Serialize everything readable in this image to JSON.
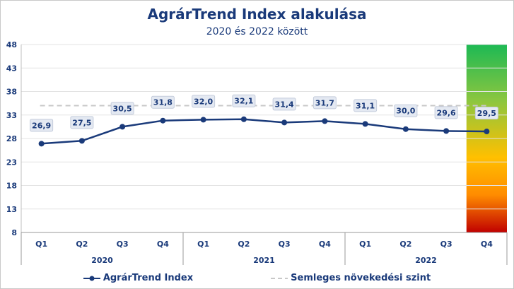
{
  "chart_data": {
    "type": "line",
    "title": "AgrárTrend Index alakulása",
    "subtitle": "2020 és 2022 között",
    "categories": [
      "Q1",
      "Q2",
      "Q3",
      "Q4",
      "Q1",
      "Q2",
      "Q3",
      "Q4",
      "Q1",
      "Q2",
      "Q3",
      "Q4"
    ],
    "groups": [
      {
        "label": "2020",
        "from": 0,
        "to": 3
      },
      {
        "label": "2021",
        "from": 4,
        "to": 7
      },
      {
        "label": "2022",
        "from": 8,
        "to": 11
      }
    ],
    "series": [
      {
        "name": "AgrárTrend Index",
        "values": [
          26.9,
          27.5,
          30.5,
          31.8,
          32.0,
          32.1,
          31.4,
          31.7,
          31.1,
          30.0,
          29.6,
          29.5
        ],
        "labels": [
          "26,9",
          "27,5",
          "30,5",
          "31,8",
          "32,0",
          "32,1",
          "31,4",
          "31,7",
          "31,1",
          "30,0",
          "29,6",
          "29,5"
        ],
        "color": "#1a3a7a"
      },
      {
        "name": "Semleges növekedési szint",
        "value": 35,
        "color": "#c8c8c8",
        "style": "dashed"
      }
    ],
    "y_ticks": [
      8,
      13,
      18,
      23,
      28,
      33,
      38,
      43,
      48
    ],
    "ylim": [
      8,
      48
    ],
    "gauge_colors": [
      "#1db954",
      "#8cc63f",
      "#ffc000",
      "#ff8c00",
      "#c00000"
    ],
    "grid": true,
    "legend_position": "bottom"
  }
}
